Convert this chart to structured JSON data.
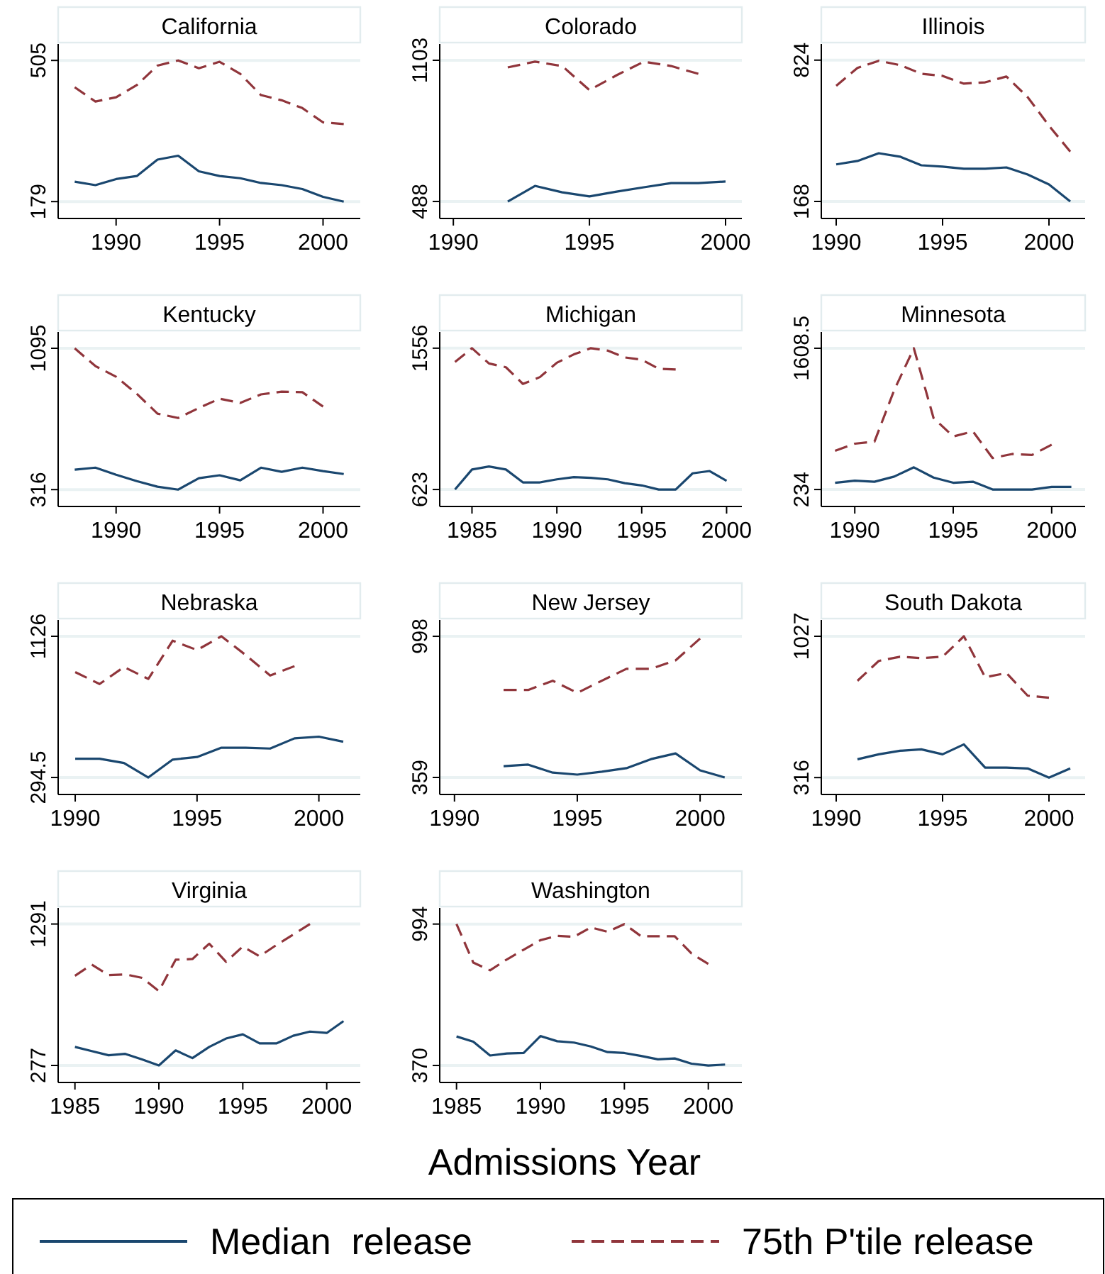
{
  "chart_data": [
    {
      "type": "line",
      "title": "California",
      "x": [
        1988,
        1989,
        1990,
        1991,
        1992,
        1993,
        1994,
        1995,
        1996,
        1997,
        1998,
        1999,
        2000,
        2001
      ],
      "xlim": [
        1987.2,
        2001.8
      ],
      "xticks": [
        1990,
        1995,
        2000
      ],
      "ylim": [
        140,
        543
      ],
      "yticks": [
        179,
        505
      ],
      "grid": "y",
      "series": [
        {
          "color": "#1a476f",
          "line_style": "solid",
          "values": [
            225,
            217,
            231,
            238,
            276,
            285,
            249,
            238,
            233,
            222,
            217,
            208,
            190,
            179
          ]
        },
        {
          "color": "#90353b",
          "line_style": "dashed",
          "values": [
            443,
            410,
            420,
            448,
            493,
            505,
            487,
            502,
            474,
            425,
            413,
            395,
            362,
            358
          ]
        }
      ]
    },
    {
      "type": "line",
      "title": "Colorado",
      "x": [
        1992,
        1993,
        1994,
        1995,
        1996,
        1997,
        1998,
        1999,
        2000
      ],
      "xlim": [
        1989.5,
        2000.6
      ],
      "xticks": [
        1990,
        1995,
        2000
      ],
      "ylim": [
        414,
        1174
      ],
      "yticks": [
        488,
        1103
      ],
      "grid": "y",
      "series": [
        {
          "color": "#1a476f",
          "line_style": "solid",
          "values": [
            488,
            556,
            528,
            510,
            531,
            550,
            568,
            568,
            575
          ]
        },
        {
          "color": "#90353b",
          "line_style": "dashed",
          "values": [
            1072,
            1097,
            1078,
            973,
            1038,
            1097,
            1078,
            1044,
            null
          ]
        }
      ]
    },
    {
      "type": "line",
      "title": "Illinois",
      "x": [
        1990,
        1991,
        1992,
        1993,
        1994,
        1995,
        1996,
        1997,
        1998,
        1999,
        2000,
        2001
      ],
      "xlim": [
        1989.3,
        2001.7
      ],
      "xticks": [
        1990,
        1995,
        2000
      ],
      "ylim": [
        89,
        899
      ],
      "yticks": [
        168,
        824
      ],
      "grid": "y",
      "series": [
        {
          "color": "#1a476f",
          "line_style": "solid",
          "values": [
            340,
            356,
            392,
            376,
            336,
            330,
            320,
            320,
            326,
            293,
            247,
            168
          ]
        },
        {
          "color": "#90353b",
          "line_style": "dashed",
          "values": [
            705,
            788,
            821,
            801,
            761,
            751,
            715,
            721,
            748,
            652,
            520,
            399
          ]
        }
      ]
    },
    {
      "type": "line",
      "title": "Kentucky",
      "x": [
        1988,
        1989,
        1990,
        1991,
        1992,
        1993,
        1994,
        1995,
        1996,
        1997,
        1998,
        1999,
        2000,
        2001
      ],
      "xlim": [
        1987.2,
        2001.8
      ],
      "xticks": [
        1990,
        1995,
        2000
      ],
      "ylim": [
        223,
        1185
      ],
      "yticks": [
        316,
        1095
      ],
      "grid": "y",
      "series": [
        {
          "color": "#1a476f",
          "line_style": "solid",
          "values": [
            426,
            437,
            398,
            363,
            332,
            316,
            379,
            395,
            367,
            437,
            414,
            437,
            418,
            402
          ]
        },
        {
          "color": "#90353b",
          "line_style": "dashed",
          "values": [
            1095,
            997,
            938,
            844,
            735,
            711,
            766,
            817,
            794,
            841,
            856,
            853,
            774,
            null
          ]
        }
      ]
    },
    {
      "type": "line",
      "title": "Michigan",
      "x": [
        1984,
        1985,
        1986,
        1987,
        1988,
        1989,
        1990,
        1991,
        1992,
        1993,
        1994,
        1995,
        1996,
        1997,
        1998,
        1999,
        2000
      ],
      "xlim": [
        1983.1,
        2000.9
      ],
      "xticks": [
        1985,
        1990,
        1995,
        2000
      ],
      "ylim": [
        511,
        1663
      ],
      "yticks": [
        623,
        1556
      ],
      "grid": "y",
      "series": [
        {
          "color": "#1a476f",
          "line_style": "solid",
          "values": [
            623,
            755,
            775,
            755,
            670,
            670,
            690,
            705,
            700,
            690,
            665,
            650,
            623,
            623,
            730,
            745,
            680
          ]
        },
        {
          "color": "#90353b",
          "line_style": "dashed",
          "values": [
            1465,
            1556,
            1455,
            1430,
            1320,
            1365,
            1460,
            1515,
            1556,
            1540,
            1495,
            1480,
            1420,
            1415,
            null,
            null,
            null
          ]
        }
      ]
    },
    {
      "type": "line",
      "title": "Minnesota",
      "x": [
        1989,
        1990,
        1991,
        1992,
        1993,
        1994,
        1995,
        1996,
        1997,
        1998,
        1999,
        2000,
        2001
      ],
      "xlim": [
        1988.3,
        2001.7
      ],
      "xticks": [
        1990,
        1995,
        2000
      ],
      "ylim": [
        69,
        1767
      ],
      "yticks": [
        234,
        {
          "value": 1608.5,
          "label": "1608.5"
        }
      ],
      "grid": "y",
      "series": [
        {
          "color": "#1a476f",
          "line_style": "solid",
          "values": [
            300,
            320,
            310,
            360,
            450,
            350,
            300,
            310,
            234,
            234,
            234,
            260,
            260
          ]
        },
        {
          "color": "#90353b",
          "line_style": "dashed",
          "values": [
            610,
            680,
            700,
            1200,
            1608.5,
            930,
            750,
            800,
            540,
            580,
            570,
            670,
            null
          ]
        }
      ]
    },
    {
      "type": "line",
      "title": "Nebraska",
      "x": [
        1990,
        1991,
        1992,
        1993,
        1994,
        1995,
        1996,
        1997,
        1998,
        1999,
        2000,
        2001
      ],
      "xlim": [
        1989.3,
        2001.7
      ],
      "xticks": [
        1990,
        1995,
        2000
      ],
      "ylim": [
        194.5,
        1222
      ],
      "yticks": [
        {
          "value": 294.5,
          "label": "294.5"
        },
        1126
      ],
      "grid": "y",
      "series": [
        {
          "color": "#1a476f",
          "line_style": "solid",
          "values": [
            405,
            405,
            380,
            294.5,
            400,
            415,
            470,
            470,
            465,
            525,
            535,
            505
          ]
        },
        {
          "color": "#90353b",
          "line_style": "dashed",
          "values": [
            915,
            845,
            945,
            875,
            1100,
            1045,
            1126,
            1015,
            895,
            950,
            null,
            null
          ]
        }
      ]
    },
    {
      "type": "line",
      "title": "New Jersey",
      "x": [
        1992,
        1993,
        1994,
        1995,
        1996,
        1997,
        1998,
        1999,
        2000,
        2001
      ],
      "xlim": [
        1989.4,
        2001.7
      ],
      "xticks": [
        1990,
        1995,
        2000
      ],
      "ylim": [
        282,
        1072
      ],
      "yticks": [
        359,
        998
      ],
      "grid": "y",
      "series": [
        {
          "color": "#1a476f",
          "line_style": "solid",
          "values": [
            410,
            417,
            381,
            372,
            385,
            401,
            442,
            468,
            391,
            359
          ]
        },
        {
          "color": "#90353b",
          "line_style": "dashed",
          "values": [
            755,
            755,
            797,
            742,
            797,
            851,
            851,
            889,
            988,
            null
          ]
        }
      ]
    },
    {
      "type": "line",
      "title": "South Dakota",
      "x": [
        1991,
        1992,
        1993,
        1994,
        1995,
        1996,
        1997,
        1998,
        1999,
        2000,
        2001
      ],
      "xlim": [
        1989.3,
        2001.7
      ],
      "xticks": [
        1990,
        1995,
        2000
      ],
      "ylim": [
        231,
        1109
      ],
      "yticks": [
        316,
        1027
      ],
      "grid": "y",
      "series": [
        {
          "color": "#1a476f",
          "line_style": "solid",
          "values": [
            408,
            433,
            451,
            458,
            433,
            483,
            366,
            366,
            362,
            316,
            362
          ]
        },
        {
          "color": "#90353b",
          "line_style": "dashed",
          "values": [
            803,
            903,
            924,
            917,
            924,
            1027,
            821,
            842,
            728,
            718,
            null
          ]
        }
      ]
    },
    {
      "type": "line",
      "title": "Virginia",
      "x": [
        1985,
        1986,
        1987,
        1988,
        1989,
        1990,
        1991,
        1992,
        1993,
        1994,
        1995,
        1996,
        1997,
        1998,
        1999,
        2000,
        2001
      ],
      "xlim": [
        1984,
        2002
      ],
      "xticks": [
        1985,
        1990,
        1995,
        2000
      ],
      "ylim": [
        155,
        1406
      ],
      "yticks": [
        277,
        1291
      ],
      "grid": "y",
      "series": [
        {
          "color": "#1a476f",
          "line_style": "solid",
          "values": [
            410,
            380,
            350,
            360,
            320,
            277,
            385,
            330,
            410,
            470,
            500,
            435,
            435,
            490,
            520,
            510,
            595
          ]
        },
        {
          "color": "#90353b",
          "line_style": "dashed",
          "values": [
            920,
            1000,
            925,
            930,
            905,
            810,
            1035,
            1040,
            1150,
            1020,
            1130,
            1060,
            1140,
            1215,
            1291,
            null,
            null
          ]
        }
      ]
    },
    {
      "type": "line",
      "title": "Washington",
      "xlabel": "Admissions Year",
      "legend": "bottom",
      "x": [
        1985,
        1986,
        1987,
        1988,
        1989,
        1990,
        1991,
        1992,
        1993,
        1994,
        1995,
        1996,
        1997,
        1998,
        1999,
        2000,
        2001
      ],
      "xlim": [
        1984,
        2002
      ],
      "xticks": [
        1985,
        1990,
        1995,
        2000
      ],
      "ylim": [
        295,
        1065
      ],
      "yticks": [
        370,
        994
      ],
      "grid": "y",
      "series": [
        {
          "name": "Median  release",
          "color": "#1a476f",
          "line_style": "solid",
          "values": [
            498,
            475,
            414,
            423,
            425,
            500,
            477,
            471,
            454,
            429,
            425,
            412,
            397,
            401,
            378,
            370,
            374
          ]
        },
        {
          "name": "75th P'tile release",
          "color": "#90353b",
          "line_style": "dashed",
          "values": [
            994,
            824,
            790,
            838,
            881,
            923,
            942,
            938,
            979,
            960,
            994,
            940,
            940,
            940,
            864,
            818,
            null
          ]
        }
      ]
    }
  ]
}
